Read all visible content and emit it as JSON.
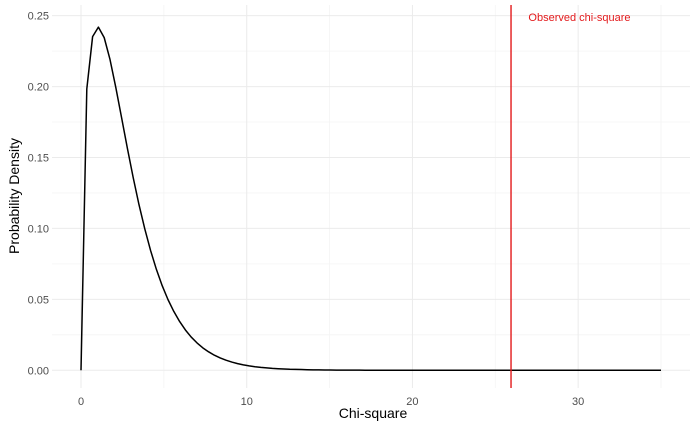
{
  "chart_data": {
    "type": "line",
    "title": "",
    "xlabel": "Chi-square",
    "ylabel": "Probability Density",
    "xlim": [
      -1.75,
      36.75
    ],
    "ylim": [
      -0.0125,
      0.2575
    ],
    "x_ticks": [
      0,
      10,
      20,
      30
    ],
    "x_tick_labels": [
      "0",
      "10",
      "20",
      "30"
    ],
    "y_ticks": [
      0.0,
      0.05,
      0.1,
      0.15,
      0.2,
      0.25
    ],
    "y_tick_labels": [
      "0.00",
      "0.05",
      "0.10",
      "0.15",
      "0.20",
      "0.25"
    ],
    "grid": true,
    "series": [
      {
        "color": "#000000",
        "x": [
          0,
          0.35,
          0.7,
          1.05,
          1.4,
          1.75,
          2.1,
          2.45,
          2.8,
          3.15,
          3.5,
          3.85,
          4.2,
          4.55,
          4.9,
          5.25,
          5.6,
          5.95,
          6.3,
          6.65,
          7.0,
          7.35,
          7.7,
          8.05,
          8.4,
          8.75,
          9.1,
          9.45,
          9.8,
          10.15,
          10.5,
          10.85,
          11.2,
          11.55,
          11.9,
          12.25,
          12.6,
          12.95,
          13.3,
          13.65,
          14.0,
          14.35,
          14.7,
          15.05,
          15.4,
          15.75,
          16.1,
          16.45,
          16.8,
          17.15,
          17.5,
          17.85,
          18.2,
          18.55,
          18.9,
          19.25,
          19.6,
          19.95,
          20.3,
          20.65,
          21.0,
          21.35,
          21.7,
          22.05,
          22.4,
          22.75,
          23.1,
          23.45,
          23.8,
          24.15,
          24.5,
          24.85,
          25.2,
          25.55,
          25.9,
          26.25,
          26.6,
          26.95,
          27.3,
          27.65,
          28.0,
          28.35,
          28.7,
          29.05,
          29.4,
          29.75,
          30.1,
          30.45,
          30.8,
          31.15,
          31.5,
          31.85,
          32.2,
          32.55,
          32.9,
          33.25,
          33.6,
          33.95,
          34.3,
          34.65,
          35.0
        ],
        "y": [
          0.0,
          0.1983,
          0.2352,
          0.2419,
          0.2345,
          0.2191,
          0.1994,
          0.178,
          0.1564,
          0.1358,
          0.1167,
          0.0996,
          0.0844,
          0.0711,
          0.0596,
          0.0498,
          0.0415,
          0.0344,
          0.0284,
          0.0234,
          0.0193,
          0.0158,
          0.013,
          0.0106,
          0.0087,
          0.0071,
          0.0058,
          0.0047,
          0.0038,
          0.0031,
          0.0025,
          0.002,
          0.0017,
          0.0013,
          0.0011,
          0.0009,
          0.0007,
          0.0006,
          0.0005,
          0.0004,
          0.0003,
          0.0003,
          0.0002,
          0.0002,
          0.0001,
          0.0001,
          0.0001,
          0.0001,
          0.0001,
          0.0,
          0.0,
          0.0,
          0.0,
          0.0,
          0.0,
          0.0,
          0.0,
          0.0,
          0.0,
          0.0,
          0.0,
          0.0,
          0.0,
          0.0,
          0.0,
          0.0,
          0.0,
          0.0,
          0.0,
          0.0,
          0.0,
          0.0,
          0.0,
          0.0,
          0.0,
          0.0,
          0.0,
          0.0,
          0.0,
          0.0,
          0.0,
          0.0,
          0.0,
          0.0,
          0.0,
          0.0,
          0.0,
          0.0,
          0.0,
          0.0,
          0.0,
          0.0,
          0.0,
          0.0,
          0.0,
          0.0,
          0.0,
          0.0,
          0.0,
          0.0,
          0.0
        ]
      }
    ],
    "vline": {
      "x": 25.95,
      "color": "#e31a1c",
      "label": "Observed chi-square",
      "label_x": 27.0,
      "label_y": 0.249
    }
  }
}
